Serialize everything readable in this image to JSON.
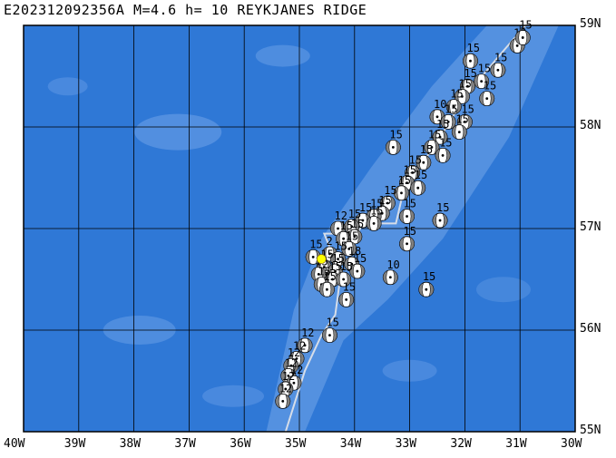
{
  "title": "E202312092356A M=4.6 h= 10 REYKJANES RIDGE",
  "colors": {
    "ocean": "#2f78d6",
    "shallow": "#5b95e2",
    "grid": "#000000",
    "plate_boundary": "#d6dde8",
    "event": "#ffff00"
  },
  "map": {
    "lon_range": [
      -40,
      -30
    ],
    "lat_range": [
      55,
      59
    ],
    "lon_labels": [
      "40W",
      "39W",
      "38W",
      "37W",
      "36W",
      "35W",
      "34W",
      "33W",
      "32W",
      "31W",
      "30W"
    ],
    "lat_labels": [
      "59N",
      "58N",
      "57N",
      "56N",
      "55N"
    ]
  },
  "event": {
    "id": "E202312092356A",
    "magnitude": 4.6,
    "depth_km": 10,
    "region": "REYKJANES RIDGE",
    "lon": -34.6,
    "lat": 56.7
  },
  "mechanisms": [
    {
      "lon": -31.05,
      "lat": 58.8,
      "depth": "12"
    },
    {
      "lon": -30.95,
      "lat": 58.88,
      "depth": "15"
    },
    {
      "lon": -31.4,
      "lat": 58.56,
      "depth": "15"
    },
    {
      "lon": -31.9,
      "lat": 58.65,
      "depth": "15"
    },
    {
      "lon": -31.7,
      "lat": 58.45,
      "depth": "15"
    },
    {
      "lon": -31.95,
      "lat": 58.4,
      "depth": "15"
    },
    {
      "lon": -32.05,
      "lat": 58.3,
      "depth": "15"
    },
    {
      "lon": -31.6,
      "lat": 58.28,
      "depth": "15"
    },
    {
      "lon": -32.2,
      "lat": 58.2,
      "depth": "15"
    },
    {
      "lon": -32.5,
      "lat": 58.1,
      "depth": "10"
    },
    {
      "lon": -32.3,
      "lat": 58.05,
      "depth": "15"
    },
    {
      "lon": -32.0,
      "lat": 58.05,
      "depth": "15"
    },
    {
      "lon": -32.1,
      "lat": 57.95,
      "depth": "15"
    },
    {
      "lon": -32.45,
      "lat": 57.9,
      "depth": "15"
    },
    {
      "lon": -32.6,
      "lat": 57.8,
      "depth": "15"
    },
    {
      "lon": -33.3,
      "lat": 57.8,
      "depth": "15"
    },
    {
      "lon": -32.4,
      "lat": 57.72,
      "depth": "15"
    },
    {
      "lon": -32.75,
      "lat": 57.65,
      "depth": "15"
    },
    {
      "lon": -32.95,
      "lat": 57.55,
      "depth": "15"
    },
    {
      "lon": -33.05,
      "lat": 57.45,
      "depth": "15"
    },
    {
      "lon": -32.85,
      "lat": 57.4,
      "depth": "15"
    },
    {
      "lon": -33.15,
      "lat": 57.35,
      "depth": "15"
    },
    {
      "lon": -33.4,
      "lat": 57.25,
      "depth": "15"
    },
    {
      "lon": -33.5,
      "lat": 57.15,
      "depth": "15"
    },
    {
      "lon": -33.65,
      "lat": 57.12,
      "depth": "15"
    },
    {
      "lon": -33.85,
      "lat": 57.08,
      "depth": "15"
    },
    {
      "lon": -33.65,
      "lat": 57.05,
      "depth": "15"
    },
    {
      "lon": -33.05,
      "lat": 57.12,
      "depth": "15"
    },
    {
      "lon": -32.45,
      "lat": 57.08,
      "depth": "15"
    },
    {
      "lon": -34.05,
      "lat": 57.02,
      "depth": "15"
    },
    {
      "lon": -34.3,
      "lat": 57.0,
      "depth": "12"
    },
    {
      "lon": -34.0,
      "lat": 56.92,
      "depth": "15"
    },
    {
      "lon": -33.05,
      "lat": 56.85,
      "depth": "15"
    },
    {
      "lon": -34.2,
      "lat": 56.9,
      "depth": "15"
    },
    {
      "lon": -34.1,
      "lat": 56.8,
      "depth": "15"
    },
    {
      "lon": -34.45,
      "lat": 56.75,
      "depth": "2"
    },
    {
      "lon": -34.75,
      "lat": 56.72,
      "depth": "15"
    },
    {
      "lon": -34.3,
      "lat": 56.7,
      "depth": "15"
    },
    {
      "lon": -34.05,
      "lat": 56.65,
      "depth": "18"
    },
    {
      "lon": -34.55,
      "lat": 56.62,
      "depth": "15"
    },
    {
      "lon": -34.35,
      "lat": 56.58,
      "depth": "15"
    },
    {
      "lon": -33.95,
      "lat": 56.58,
      "depth": "15"
    },
    {
      "lon": -34.65,
      "lat": 56.55,
      "depth": "15"
    },
    {
      "lon": -34.4,
      "lat": 56.5,
      "depth": "15"
    },
    {
      "lon": -34.2,
      "lat": 56.5,
      "depth": "15"
    },
    {
      "lon": -34.6,
      "lat": 56.45,
      "depth": "15"
    },
    {
      "lon": -33.35,
      "lat": 56.52,
      "depth": "10"
    },
    {
      "lon": -34.5,
      "lat": 56.4,
      "depth": "15"
    },
    {
      "lon": -32.7,
      "lat": 56.4,
      "depth": "15"
    },
    {
      "lon": -34.15,
      "lat": 56.3,
      "depth": "15"
    },
    {
      "lon": -34.45,
      "lat": 55.95,
      "depth": "15"
    },
    {
      "lon": -34.9,
      "lat": 55.85,
      "depth": "12"
    },
    {
      "lon": -35.05,
      "lat": 55.72,
      "depth": "12"
    },
    {
      "lon": -35.15,
      "lat": 55.65,
      "depth": "12"
    },
    {
      "lon": -35.2,
      "lat": 55.55,
      "depth": "12"
    },
    {
      "lon": -35.1,
      "lat": 55.48,
      "depth": "12"
    },
    {
      "lon": -35.25,
      "lat": 55.42,
      "depth": "12"
    },
    {
      "lon": -35.3,
      "lat": 55.3,
      "depth": "12"
    }
  ]
}
